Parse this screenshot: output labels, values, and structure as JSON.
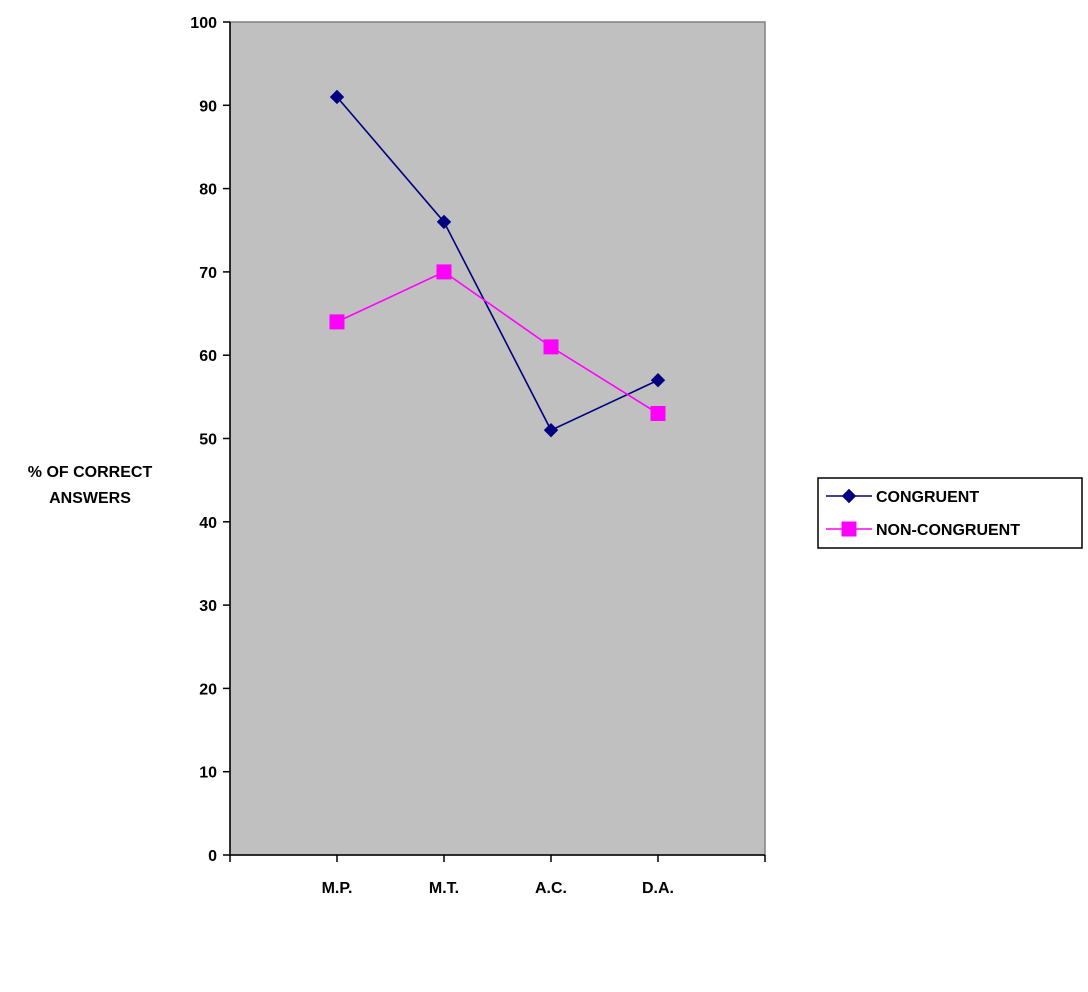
{
  "chart_data": {
    "type": "line",
    "title": "",
    "xlabel": "",
    "ylabel_lines": [
      "% OF CORRECT",
      "ANSWERS"
    ],
    "categories": [
      "M.P.",
      "M.T.",
      "A.C.",
      "D.A."
    ],
    "ylim": [
      0,
      100
    ],
    "yticks": [
      0,
      10,
      20,
      30,
      40,
      50,
      60,
      70,
      80,
      90,
      100
    ],
    "grid": false,
    "plot_background": "#c0c0c0",
    "legend_position": "right",
    "series": [
      {
        "name": "CONGRUENT",
        "values": [
          91,
          76,
          51,
          57
        ],
        "color": "#000080",
        "marker": "diamond"
      },
      {
        "name": "NON-CONGRUENT",
        "values": [
          64,
          70,
          61,
          53
        ],
        "color": "#ff00ff",
        "marker": "square"
      }
    ]
  }
}
